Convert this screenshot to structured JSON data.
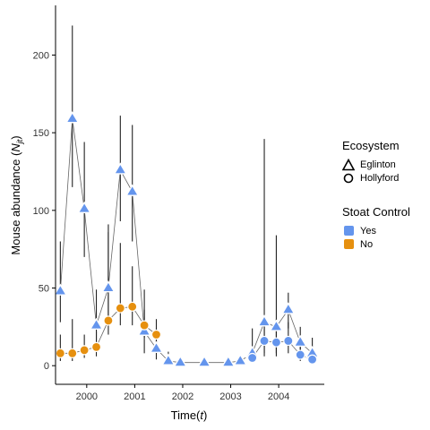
{
  "chart_data": {
    "type": "scatter",
    "title": "",
    "xlabel": "Time(t)",
    "ylabel": "Mouse abundance (N_jt)",
    "xlim": [
      1999.35,
      2004.95
    ],
    "ylim": [
      -12,
      232
    ],
    "x_ticks": [
      2000,
      2001,
      2002,
      2003,
      2004
    ],
    "y_ticks": [
      0,
      50,
      100,
      150,
      200
    ],
    "grid": false,
    "legend_position": "right",
    "legends": {
      "shape": {
        "title": "Ecosystem",
        "items": [
          {
            "label": "Eglinton",
            "shape": "triangle"
          },
          {
            "label": "Hollyford",
            "shape": "circle"
          }
        ]
      },
      "color": {
        "title": "Stoat Control",
        "items": [
          {
            "label": "Yes",
            "color": "#6495ED"
          },
          {
            "label": "No",
            "color": "#E6900F"
          }
        ]
      }
    },
    "series": [
      {
        "ecosystem": "Eglinton",
        "stoat_control": "Yes",
        "points": [
          {
            "x": 1999.45,
            "y": 48,
            "lo": 28,
            "hi": 80
          },
          {
            "x": 1999.7,
            "y": 159,
            "lo": 115,
            "hi": 219
          },
          {
            "x": 1999.95,
            "y": 101,
            "lo": 70,
            "hi": 144
          },
          {
            "x": 2000.2,
            "y": 26,
            "lo": 14,
            "hi": 49
          },
          {
            "x": 2000.45,
            "y": 50,
            "lo": 26,
            "hi": 91
          },
          {
            "x": 2000.7,
            "y": 126,
            "lo": 93,
            "hi": 161
          },
          {
            "x": 2000.95,
            "y": 112,
            "lo": 80,
            "hi": 155
          },
          {
            "x": 2001.2,
            "y": 22,
            "lo": 8,
            "hi": 49
          },
          {
            "x": 2001.45,
            "y": 11,
            "lo": 4,
            "hi": 24
          },
          {
            "x": 2001.7,
            "y": 3,
            "lo": 1,
            "hi": 9
          },
          {
            "x": 2001.95,
            "y": 2,
            "lo": 1,
            "hi": 3
          },
          {
            "x": 2002.45,
            "y": 2,
            "lo": 1,
            "hi": 2
          },
          {
            "x": 2002.95,
            "y": 2,
            "lo": 1,
            "hi": 2
          },
          {
            "x": 2003.2,
            "y": 3,
            "lo": 1,
            "hi": 5
          },
          {
            "x": 2003.45,
            "y": 8,
            "lo": 2,
            "hi": 24
          },
          {
            "x": 2003.7,
            "y": 28,
            "lo": 8,
            "hi": 146
          },
          {
            "x": 2003.95,
            "y": 25,
            "lo": 8,
            "hi": 84
          },
          {
            "x": 2004.2,
            "y": 36,
            "lo": 24,
            "hi": 47
          },
          {
            "x": 2004.45,
            "y": 15,
            "lo": 5,
            "hi": 25
          },
          {
            "x": 2004.7,
            "y": 8,
            "lo": 3,
            "hi": 18
          }
        ]
      },
      {
        "ecosystem": "Hollyford",
        "stoat_control": "Yes",
        "points": [
          {
            "x": 2003.45,
            "y": 5,
            "lo": 2,
            "hi": 8
          },
          {
            "x": 2003.7,
            "y": 16,
            "lo": 6,
            "hi": 30
          },
          {
            "x": 2003.95,
            "y": 15,
            "lo": 6,
            "hi": 30
          },
          {
            "x": 2004.2,
            "y": 16,
            "lo": 8,
            "hi": 28
          },
          {
            "x": 2004.45,
            "y": 7,
            "lo": 3,
            "hi": 14
          },
          {
            "x": 2004.7,
            "y": 4,
            "lo": 2,
            "hi": 8
          }
        ]
      },
      {
        "ecosystem": "Hollyford",
        "stoat_control": "No",
        "points": [
          {
            "x": 1999.45,
            "y": 8,
            "lo": 3,
            "hi": 20
          },
          {
            "x": 1999.7,
            "y": 8,
            "lo": 3,
            "hi": 30
          },
          {
            "x": 1999.95,
            "y": 10,
            "lo": 5,
            "hi": 20
          },
          {
            "x": 2000.2,
            "y": 12,
            "lo": 6,
            "hi": 22
          },
          {
            "x": 2000.45,
            "y": 29,
            "lo": 20,
            "hi": 86
          },
          {
            "x": 2000.7,
            "y": 37,
            "lo": 26,
            "hi": 79
          },
          {
            "x": 2000.95,
            "y": 38,
            "lo": 26,
            "hi": 64
          },
          {
            "x": 2001.2,
            "y": 26,
            "lo": 18,
            "hi": 36
          },
          {
            "x": 2001.45,
            "y": 20,
            "lo": 12,
            "hi": 30
          }
        ]
      }
    ]
  }
}
